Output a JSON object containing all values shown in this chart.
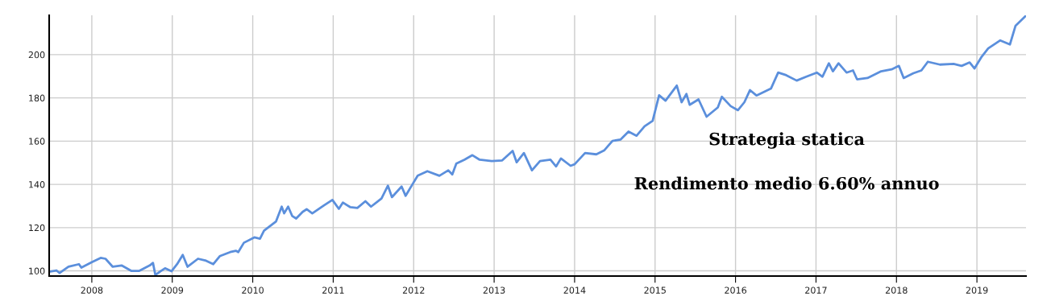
{
  "chart_data": {
    "type": "line",
    "annotations": [
      "Strategia statica",
      "Rendimento medio 6.60% annuo"
    ],
    "xlim": [
      2007.47,
      2019.61
    ],
    "xticks": [
      2008,
      2009,
      2010,
      2011,
      2012,
      2013,
      2014,
      2015,
      2016,
      2017,
      2018,
      2019
    ],
    "ylim": [
      97.6,
      218.2
    ],
    "yticks": [
      100,
      120,
      140,
      160,
      180,
      200
    ],
    "grid": true,
    "marker": "none",
    "line_style": "solid",
    "series": [
      {
        "color": "#5b8fdc",
        "x": [
          2007.47,
          2007.56,
          2007.6,
          2007.71,
          2007.84,
          2007.87,
          2008.0,
          2008.11,
          2008.17,
          2008.26,
          2008.37,
          2008.49,
          2008.59,
          2008.72,
          2008.76,
          2008.79,
          2008.86,
          2008.91,
          2008.99,
          2009.06,
          2009.13,
          2009.19,
          2009.32,
          2009.42,
          2009.51,
          2009.59,
          2009.72,
          2009.79,
          2009.82,
          2009.89,
          2010.02,
          2010.09,
          2010.14,
          2010.29,
          2010.36,
          2010.39,
          2010.44,
          2010.49,
          2010.54,
          2010.62,
          2010.67,
          2010.74,
          2010.89,
          2010.99,
          2011.07,
          2011.12,
          2011.21,
          2011.3,
          2011.4,
          2011.47,
          2011.6,
          2011.68,
          2011.73,
          2011.85,
          2011.9,
          2011.98,
          2012.05,
          2012.17,
          2012.32,
          2012.43,
          2012.48,
          2012.53,
          2012.63,
          2012.73,
          2012.82,
          2012.97,
          2013.1,
          2013.23,
          2013.28,
          2013.37,
          2013.47,
          2013.57,
          2013.7,
          2013.77,
          2013.83,
          2013.95,
          2014.0,
          2014.13,
          2014.27,
          2014.37,
          2014.47,
          2014.57,
          2014.67,
          2014.77,
          2014.87,
          2014.97,
          2015.05,
          2015.13,
          2015.27,
          2015.33,
          2015.39,
          2015.43,
          2015.54,
          2015.64,
          2015.78,
          2015.83,
          2015.94,
          2016.03,
          2016.11,
          2016.18,
          2016.26,
          2016.44,
          2016.53,
          2016.63,
          2016.76,
          2016.88,
          2017.01,
          2017.08,
          2017.16,
          2017.21,
          2017.28,
          2017.38,
          2017.46,
          2017.51,
          2017.64,
          2017.81,
          2017.94,
          2018.03,
          2018.09,
          2018.21,
          2018.31,
          2018.39,
          2018.54,
          2018.71,
          2018.81,
          2018.91,
          2018.97,
          2019.06,
          2019.14,
          2019.29,
          2019.41,
          2019.48,
          2019.6
        ],
        "values": [
          99.6,
          100.2,
          99,
          101.9,
          103.1,
          101.5,
          104,
          106,
          105.6,
          101.9,
          102.5,
          100,
          100,
          102.5,
          103.7,
          98.1,
          100,
          101.2,
          99.8,
          103.1,
          107.4,
          101.9,
          105.6,
          104.7,
          103.1,
          106.8,
          108.7,
          109.3,
          108.7,
          113,
          115.5,
          114.9,
          118.6,
          122.9,
          129.7,
          126.6,
          129.7,
          125.4,
          124.2,
          127.3,
          128.5,
          126.6,
          130.4,
          132.8,
          128.7,
          131.6,
          129.5,
          129.1,
          132.2,
          129.7,
          133.5,
          139.4,
          134.1,
          139,
          134.7,
          139.7,
          144,
          146.1,
          144,
          146.5,
          144.6,
          149.6,
          151.4,
          153.5,
          151.4,
          150.8,
          151.1,
          155.5,
          150.2,
          154.5,
          146.5,
          150.8,
          151.4,
          148.3,
          152,
          148.6,
          149.3,
          154.5,
          153.9,
          155.8,
          160.1,
          160.7,
          164.4,
          162.5,
          166.9,
          169.4,
          181.2,
          178.7,
          185.7,
          178,
          181.8,
          176.8,
          179.3,
          171.3,
          175.6,
          180.5,
          176.2,
          174.3,
          178,
          183.6,
          181.1,
          184.3,
          191.7,
          190.5,
          188,
          189.8,
          191.7,
          189.8,
          196,
          192.3,
          196,
          191.7,
          192.7,
          188.6,
          189.2,
          192.3,
          193.2,
          194.8,
          189.2,
          191.4,
          192.7,
          196.7,
          195.4,
          195.7,
          194.8,
          196.4,
          193.6,
          199.1,
          202.9,
          206.6,
          204.7,
          213.4,
          217.7
        ]
      }
    ]
  }
}
